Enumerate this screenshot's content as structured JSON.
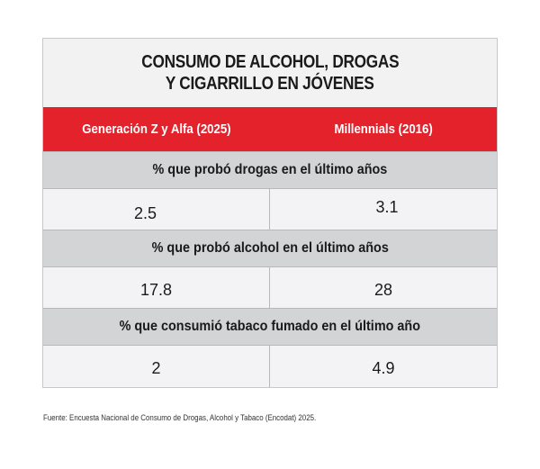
{
  "chart_data": {
    "type": "table",
    "title": "CONSUMO DE ALCOHOL, DROGAS Y CIGARRILLO EN JÓVENES",
    "title_lines": [
      "CONSUMO DE ALCOHOL, DROGAS",
      "Y CIGARRILLO EN JÓVENES"
    ],
    "columns": [
      "Generación Z y Alfa (2025)",
      "Millennials (2016)"
    ],
    "sections": [
      {
        "label": "% que probó drogas en el último años",
        "values": [
          "2.5",
          "3.1"
        ]
      },
      {
        "label": "% que probó alcohol en el último años",
        "values": [
          "17.8",
          "28"
        ]
      },
      {
        "label": "% que consumió tabaco fumado en el último año",
        "values": [
          "2",
          "4.9"
        ]
      }
    ],
    "source": "Fuente: Encuesta Nacional de Consumo de Drogas, Alcohol y Tabaco (Encodat) 2025."
  },
  "colors": {
    "header_background": "#e3222c",
    "section_background": "#d3d4d6",
    "title_background": "#f2f2f2",
    "cell_background": "#f3f3f5"
  }
}
